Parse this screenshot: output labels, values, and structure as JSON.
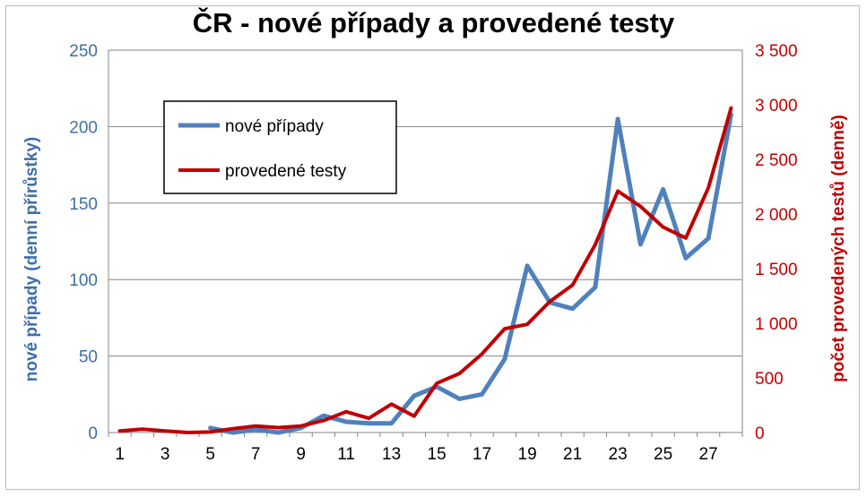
{
  "chart_data": {
    "type": "line",
    "title": "ČR - nové případy a provedené testy",
    "x": [
      1,
      2,
      3,
      4,
      5,
      6,
      7,
      8,
      9,
      10,
      11,
      12,
      13,
      14,
      15,
      16,
      17,
      18,
      19,
      20,
      21,
      22,
      23,
      24,
      25,
      26,
      27,
      28
    ],
    "x_tick_labels": [
      "1",
      "3",
      "5",
      "7",
      "9",
      "11",
      "13",
      "15",
      "17",
      "19",
      "21",
      "23",
      "25",
      "27"
    ],
    "y_left": {
      "label": "nové případy (denní přírůstky)",
      "range": [
        0,
        250
      ],
      "ticks": [
        "0",
        "50",
        "100",
        "150",
        "200",
        "250"
      ]
    },
    "y_right": {
      "label": "počet provedených testů (denně)",
      "range": [
        0,
        3500
      ],
      "ticks": [
        "0",
        "500",
        "1 000",
        "1 500",
        "2 000",
        "2 500",
        "3 000",
        "3 500"
      ]
    },
    "grid": true,
    "legend_position": "top-left",
    "series": [
      {
        "name": "nové případy",
        "axis": "left",
        "color": "#4f81bd",
        "x": [
          5,
          6,
          7,
          8,
          9,
          10,
          11,
          12,
          13,
          14,
          15,
          16,
          17,
          18,
          19,
          20,
          21,
          22,
          23,
          24,
          25,
          26,
          27,
          28
        ],
        "values": [
          3,
          0,
          2,
          0,
          3,
          11,
          7,
          6,
          6,
          24,
          30,
          22,
          25,
          48,
          109,
          85,
          81,
          95,
          205,
          123,
          159,
          114,
          127,
          208
        ]
      },
      {
        "name": "provedené testy",
        "axis": "right",
        "color": "#c00000",
        "x": [
          1,
          2,
          3,
          4,
          5,
          6,
          7,
          8,
          9,
          10,
          11,
          12,
          13,
          14,
          15,
          16,
          17,
          18,
          19,
          20,
          21,
          22,
          23,
          24,
          25,
          26,
          27,
          28
        ],
        "values": [
          15,
          30,
          15,
          0,
          5,
          35,
          60,
          45,
          60,
          110,
          190,
          130,
          260,
          150,
          450,
          540,
          720,
          950,
          990,
          1200,
          1350,
          1720,
          2210,
          2070,
          1880,
          1780,
          2240,
          2970
        ]
      }
    ]
  }
}
